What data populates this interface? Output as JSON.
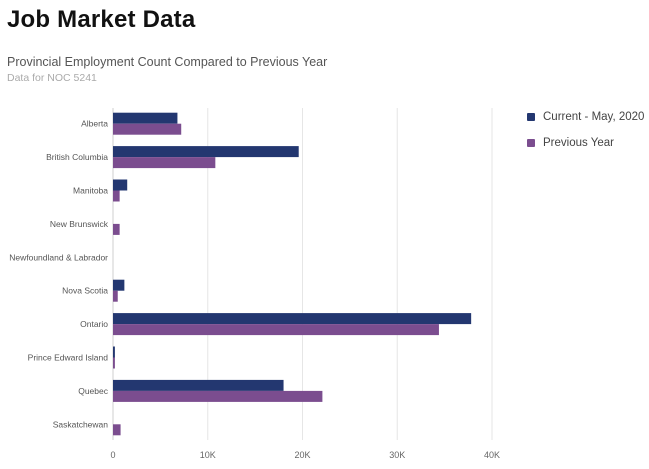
{
  "page": {
    "title": "Job Market Data"
  },
  "chart_data": {
    "type": "bar",
    "orientation": "horizontal",
    "title": "Provincial Employment Count Compared to Previous Year",
    "subtitle": "Data for NOC 5241",
    "categories": [
      "Alberta",
      "British Columbia",
      "Manitoba",
      "New Brunswick",
      "Newfoundland & Labrador",
      "Nova Scotia",
      "Ontario",
      "Prince Edward Island",
      "Quebec",
      "Saskatchewan"
    ],
    "series": [
      {
        "name": "Current - May, 2020",
        "color": "#233770",
        "values": [
          6800,
          19600,
          1500,
          0,
          0,
          1200,
          37800,
          200,
          18000,
          0
        ]
      },
      {
        "name": "Previous Year",
        "color": "#7b4d8f",
        "values": [
          7200,
          10800,
          700,
          700,
          0,
          500,
          34400,
          200,
          22100,
          800
        ]
      }
    ],
    "xlim": [
      0,
      40000
    ],
    "xticks": [
      0,
      10000,
      20000,
      30000,
      40000
    ],
    "xtick_labels": [
      "0",
      "10K",
      "20K",
      "30K",
      "40K"
    ],
    "grid": true,
    "legend_position": "right"
  }
}
